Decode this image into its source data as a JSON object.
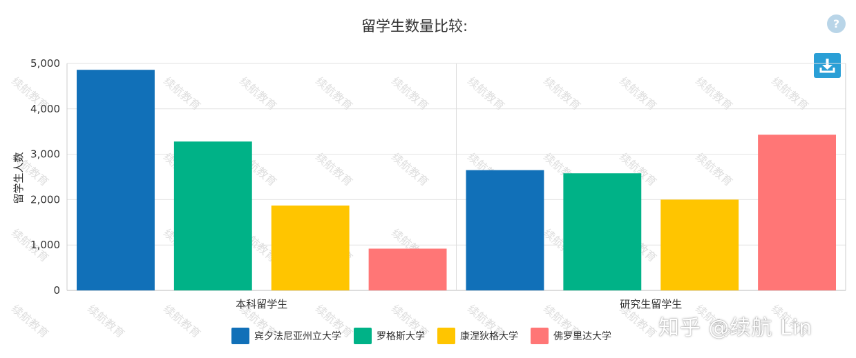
{
  "header": {
    "help_label": "?"
  },
  "toolbar": {
    "download_icon": "download-icon"
  },
  "watermark": {
    "text": "续航教育",
    "zhihu": "知乎 @续航 Lin"
  },
  "chart_data": {
    "type": "bar",
    "title": "留学生数量比较:",
    "ylabel": "留学生人数",
    "xlabel": "",
    "categories": [
      "本科留学生",
      "研究生留学生"
    ],
    "ylim": [
      0,
      5000
    ],
    "yticks": [
      0,
      1000,
      2000,
      3000,
      4000,
      5000
    ],
    "ytick_labels": [
      "0",
      "1,000",
      "2,000",
      "3,000",
      "4,000",
      "5,000"
    ],
    "grid": true,
    "legend_position": "bottom-center",
    "series": [
      {
        "name": "宾夕法尼亚州立大学",
        "color": "#1170b8",
        "values": [
          4860,
          2650
        ]
      },
      {
        "name": "罗格斯大学",
        "color": "#00b287",
        "values": [
          3280,
          2580
        ]
      },
      {
        "name": "康涅狄格大学",
        "color": "#ffc500",
        "values": [
          1870,
          2000
        ]
      },
      {
        "name": "佛罗里达大学",
        "color": "#ff7676",
        "values": [
          920,
          3430
        ]
      }
    ]
  }
}
